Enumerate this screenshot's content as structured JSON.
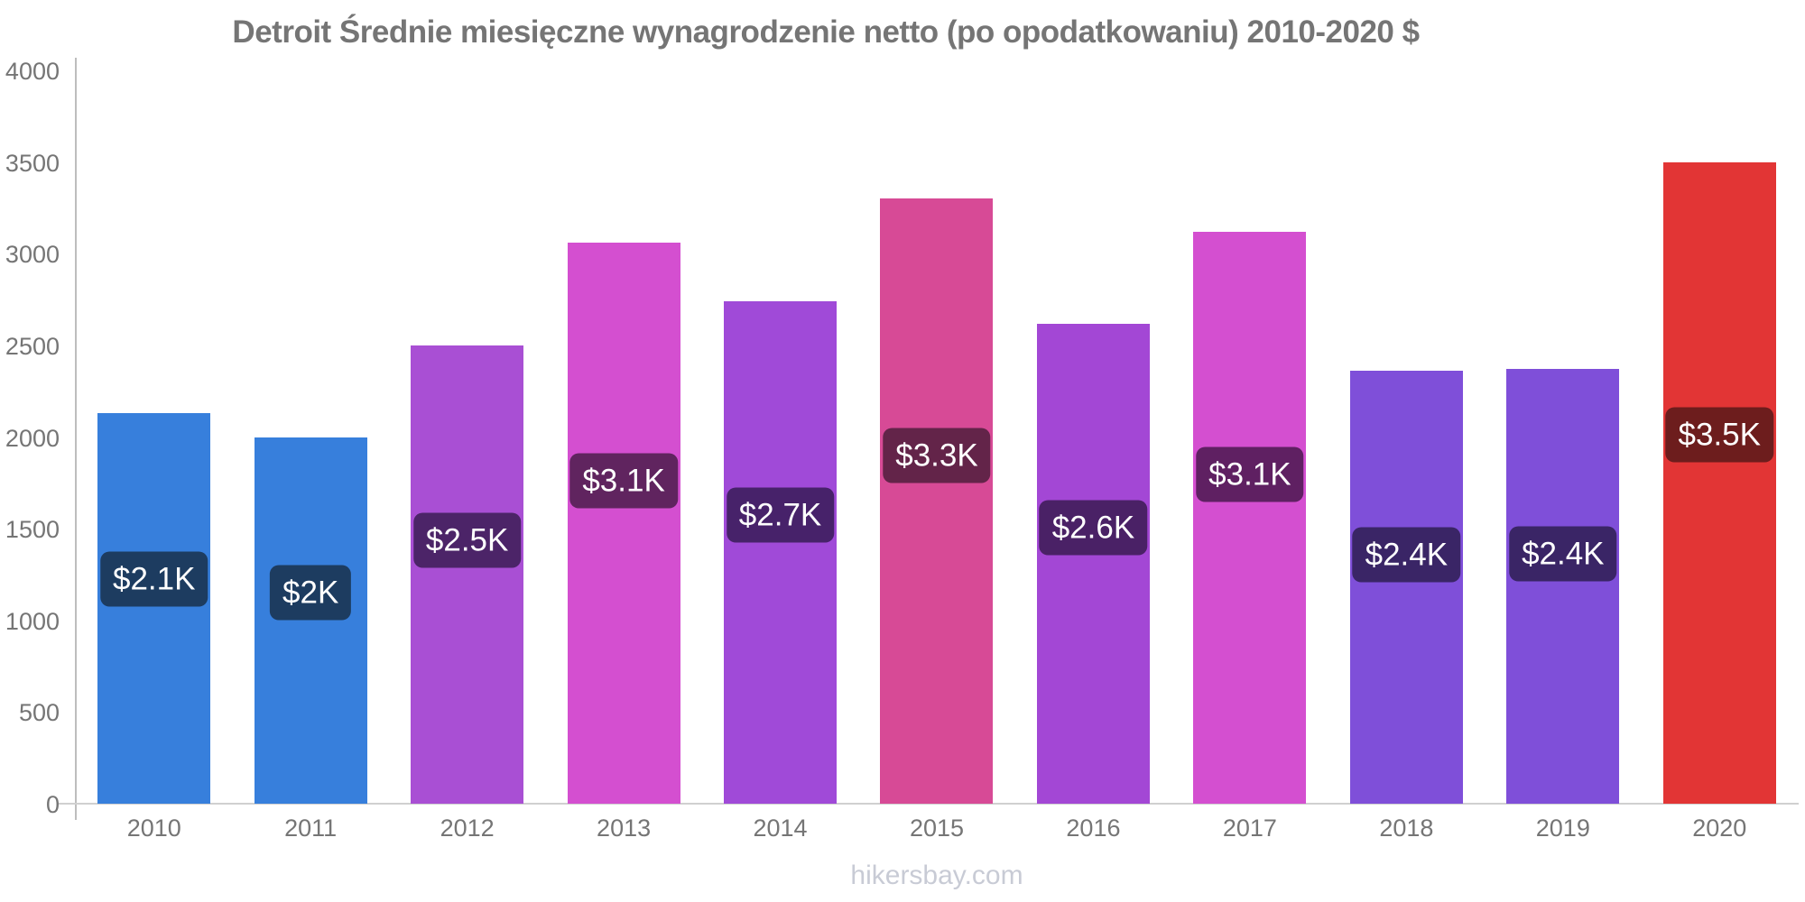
{
  "page": {
    "title": "Detroit Średnie miesięczne wynagrodzenie netto (po opodatkowaniu) 2010-2020 $",
    "footer": "hikersbay.com"
  },
  "colors": {
    "title_text": "#757575",
    "axis_text": "#757575",
    "y_axis_line": "#bdbdbd",
    "x_axis_line": "#d0d0d0",
    "value_label_text": "#ffffff",
    "watermark_text": "#c8cbd5",
    "background": "#ffffff"
  },
  "chart_data": {
    "type": "bar",
    "title": "Detroit Średnie miesięczne wynagrodzenie netto (po opodatkowaniu) 2010-2020 $",
    "xlabel": "",
    "ylabel": "",
    "categories": [
      "2010",
      "2011",
      "2012",
      "2013",
      "2014",
      "2015",
      "2016",
      "2017",
      "2018",
      "2019",
      "2020"
    ],
    "values": [
      2130,
      2000,
      2500,
      3060,
      2740,
      3300,
      2620,
      3120,
      2360,
      2370,
      3500
    ],
    "value_labels": [
      "$2.1K",
      "$2K",
      "$2.5K",
      "$3.1K",
      "$2.7K",
      "$3.3K",
      "$2.6K",
      "$3.1K",
      "$2.4K",
      "$2.4K",
      "$3.5K"
    ],
    "bar_colors": [
      "#377fdc",
      "#377fdc",
      "#a94fd4",
      "#d44fd0",
      "#a04ad8",
      "#d74a96",
      "#a347d5",
      "#d44fd0",
      "#7f4fd9",
      "#7f4fd9",
      "#e23535"
    ],
    "value_label_bg_colors": [
      "#1d3c60",
      "#1d3c60",
      "#4c2468",
      "#60245f",
      "#47226a",
      "#632449",
      "#4a2166",
      "#5f2062",
      "#3a2566",
      "#3a2566",
      "#6d1d1d"
    ],
    "ylim": [
      0,
      4000
    ],
    "yticks": [
      0,
      500,
      1000,
      1500,
      2000,
      2500,
      3000,
      3500,
      4000
    ],
    "grid": false,
    "legend": false,
    "currency_unit": "$",
    "watermark": "hikersbay.com"
  }
}
